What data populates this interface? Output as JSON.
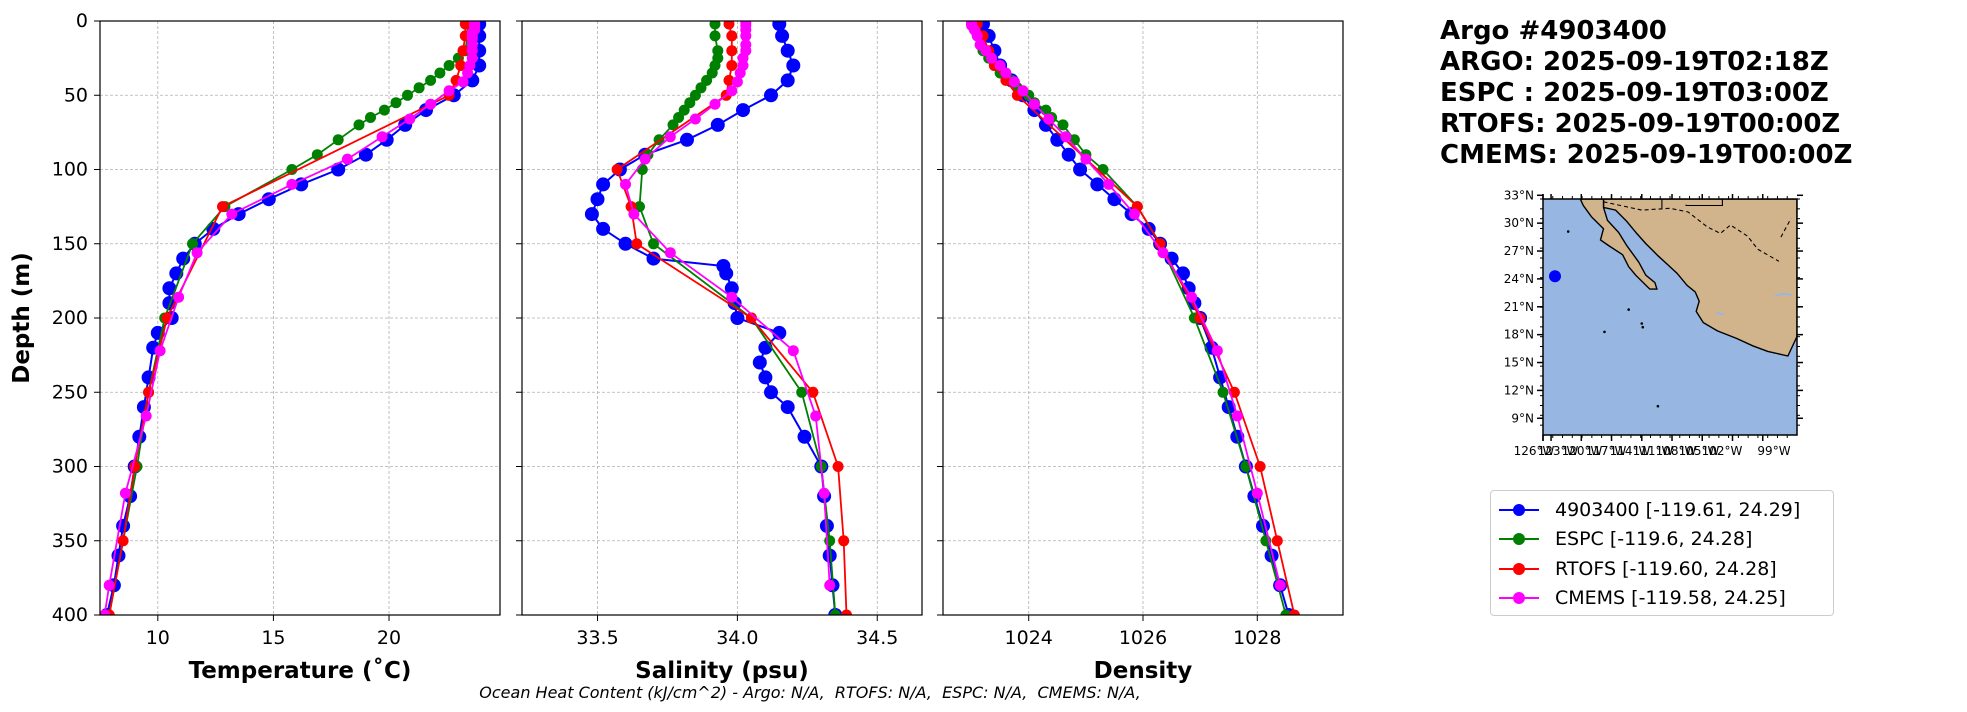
{
  "header": {
    "line1": "Argo #4903400",
    "line2": "ARGO: 2025-09-19T02:18Z",
    "line3": "ESPC : 2025-09-19T03:00Z",
    "line4": "RTOFS: 2025-09-19T00:00Z",
    "line5": "CMEMS: 2025-09-19T00:00Z"
  },
  "footer": "Ocean Heat Content (kJ/cm^2) - Argo: N/A,  RTOFS: N/A,  ESPC: N/A,  CMEMS: N/A,",
  "colors": {
    "argo": "#0000ff",
    "espc": "#008000",
    "rtofs": "#ff0000",
    "cmems": "#ff00ff",
    "ocean": "#97b6e1",
    "land": "#d2b48c",
    "grid": "#b0b0b0"
  },
  "legend": [
    {
      "key": "argo",
      "label": "4903400 [-119.61, 24.29]"
    },
    {
      "key": "espc",
      "label": "ESPC [-119.6, 24.28]"
    },
    {
      "key": "rtofs",
      "label": "RTOFS [-119.60, 24.28]"
    },
    {
      "key": "cmems",
      "label": "CMEMS [-119.58, 24.25]"
    }
  ],
  "chart_data": [
    {
      "type": "line",
      "title": "",
      "xlabel": "Temperature (˚C)",
      "ylabel": "Depth (m)",
      "xlim": [
        7.5,
        24.8
      ],
      "ylim": [
        400,
        0
      ],
      "xticks": [
        10,
        15,
        20
      ],
      "yticks": [
        0,
        50,
        100,
        150,
        200,
        250,
        300,
        350,
        400
      ],
      "grid": true,
      "series": [
        {
          "name": "Argo 4903400",
          "key": "argo",
          "depth": [
            2,
            10,
            20,
            30,
            40,
            50,
            60,
            70,
            80,
            90,
            100,
            110,
            120,
            130,
            140,
            150,
            160,
            170,
            180,
            190,
            200,
            210,
            220,
            240,
            260,
            280,
            300,
            320,
            340,
            360,
            380,
            400
          ],
          "values": [
            23.9,
            23.9,
            23.9,
            23.9,
            23.6,
            22.8,
            21.6,
            20.7,
            19.9,
            19.0,
            17.8,
            16.2,
            14.8,
            13.5,
            12.4,
            11.6,
            11.1,
            10.8,
            10.5,
            10.5,
            10.6,
            10.0,
            9.8,
            9.6,
            9.4,
            9.2,
            9.0,
            8.8,
            8.5,
            8.3,
            8.1,
            7.8
          ]
        },
        {
          "name": "ESPC",
          "key": "espc",
          "depth": [
            2,
            10,
            20,
            25,
            30,
            35,
            40,
            45,
            50,
            55,
            60,
            65,
            70,
            80,
            90,
            100,
            125,
            150,
            200,
            250,
            300,
            400
          ],
          "values": [
            23.4,
            23.4,
            23.3,
            23.0,
            22.6,
            22.2,
            21.8,
            21.3,
            20.8,
            20.3,
            19.8,
            19.2,
            18.7,
            17.8,
            16.9,
            15.8,
            12.9,
            11.5,
            10.3,
            9.6,
            9.1,
            7.9
          ]
        },
        {
          "name": "RTOFS",
          "key": "rtofs",
          "depth": [
            2,
            10,
            20,
            30,
            40,
            50,
            125,
            200,
            250,
            300,
            350,
            400
          ],
          "values": [
            23.3,
            23.3,
            23.2,
            23.1,
            22.9,
            22.6,
            12.8,
            10.4,
            9.6,
            9.0,
            8.5,
            7.9
          ]
        },
        {
          "name": "CMEMS",
          "key": "cmems",
          "depth": [
            1,
            2,
            3,
            5,
            6,
            8,
            10,
            12,
            16,
            20,
            25,
            30,
            35,
            41,
            47,
            56,
            66,
            78,
            93,
            110,
            130,
            156,
            186,
            222,
            266,
            318,
            380,
            400
          ],
          "values": [
            23.7,
            23.7,
            23.7,
            23.7,
            23.7,
            23.6,
            23.6,
            23.6,
            23.6,
            23.6,
            23.6,
            23.5,
            23.4,
            23.2,
            22.6,
            21.8,
            20.9,
            19.7,
            18.2,
            15.8,
            13.2,
            11.7,
            10.9,
            10.1,
            9.5,
            8.6,
            7.9,
            7.7
          ]
        }
      ]
    },
    {
      "type": "line",
      "title": "",
      "xlabel": "Salinity (psu)",
      "ylabel": "",
      "xlim": [
        33.23,
        34.66
      ],
      "ylim": [
        400,
        0
      ],
      "xticks": [
        33.5,
        34.0,
        34.5
      ],
      "yticks": [
        0,
        50,
        100,
        150,
        200,
        250,
        300,
        350,
        400
      ],
      "grid": true,
      "series": [
        {
          "name": "Argo 4903400",
          "key": "argo",
          "depth": [
            2,
            10,
            20,
            30,
            40,
            50,
            60,
            70,
            80,
            90,
            100,
            110,
            120,
            130,
            140,
            150,
            160,
            165,
            170,
            180,
            190,
            200,
            210,
            220,
            230,
            240,
            250,
            260,
            280,
            300,
            320,
            340,
            360,
            380,
            400
          ],
          "values": [
            34.15,
            34.16,
            34.18,
            34.2,
            34.18,
            34.12,
            34.02,
            33.93,
            33.82,
            33.67,
            33.58,
            33.52,
            33.5,
            33.48,
            33.52,
            33.6,
            33.7,
            33.95,
            33.96,
            33.98,
            33.99,
            34.0,
            34.15,
            34.1,
            34.08,
            34.1,
            34.12,
            34.18,
            34.24,
            34.3,
            34.31,
            34.32,
            34.33,
            34.34,
            34.35
          ]
        },
        {
          "name": "ESPC",
          "key": "espc",
          "depth": [
            2,
            10,
            20,
            25,
            30,
            35,
            40,
            45,
            50,
            55,
            60,
            65,
            70,
            80,
            90,
            100,
            125,
            150,
            200,
            250,
            300,
            350,
            400
          ],
          "values": [
            33.92,
            33.92,
            33.93,
            33.93,
            33.92,
            33.91,
            33.89,
            33.87,
            33.85,
            33.83,
            33.81,
            33.79,
            33.77,
            33.72,
            33.68,
            33.66,
            33.65,
            33.7,
            34.05,
            34.23,
            34.3,
            34.33,
            34.35
          ]
        },
        {
          "name": "RTOFS",
          "key": "rtofs",
          "depth": [
            2,
            10,
            20,
            30,
            40,
            50,
            100,
            125,
            150,
            200,
            250,
            300,
            350,
            400
          ],
          "values": [
            33.97,
            33.98,
            33.98,
            33.98,
            33.97,
            33.96,
            33.57,
            33.62,
            33.64,
            34.05,
            34.27,
            34.36,
            34.38,
            34.39
          ]
        },
        {
          "name": "CMEMS",
          "key": "cmems",
          "depth": [
            1,
            3,
            6,
            10,
            16,
            20,
            25,
            30,
            35,
            41,
            47,
            56,
            66,
            78,
            93,
            110,
            130,
            156,
            186,
            222,
            266,
            318,
            380
          ],
          "values": [
            34.03,
            34.03,
            34.03,
            34.03,
            34.03,
            34.03,
            34.02,
            34.02,
            34.01,
            34.0,
            33.98,
            33.92,
            33.85,
            33.76,
            33.67,
            33.6,
            33.63,
            33.76,
            33.98,
            34.2,
            34.28,
            34.31,
            34.33
          ]
        }
      ]
    },
    {
      "type": "line",
      "title": "",
      "xlabel": "Density",
      "ylabel": "",
      "xlim": [
        1022.5,
        1029.5
      ],
      "ylim": [
        400,
        0
      ],
      "xticks": [
        1024,
        1026,
        1028
      ],
      "yticks": [
        0,
        50,
        100,
        150,
        200,
        250,
        300,
        350,
        400
      ],
      "grid": true,
      "series": [
        {
          "name": "Argo 4903400",
          "key": "argo",
          "depth": [
            2,
            10,
            20,
            30,
            40,
            50,
            60,
            70,
            80,
            90,
            100,
            110,
            120,
            130,
            140,
            150,
            160,
            170,
            180,
            190,
            200,
            220,
            240,
            260,
            280,
            300,
            320,
            340,
            360,
            380,
            400
          ],
          "values": [
            1023.2,
            1023.3,
            1023.4,
            1023.5,
            1023.7,
            1023.9,
            1024.1,
            1024.3,
            1024.5,
            1024.7,
            1024.9,
            1025.2,
            1025.5,
            1025.8,
            1026.1,
            1026.3,
            1026.5,
            1026.7,
            1026.8,
            1026.9,
            1027.0,
            1027.2,
            1027.35,
            1027.5,
            1027.65,
            1027.8,
            1027.95,
            1028.1,
            1028.25,
            1028.4,
            1028.55
          ]
        },
        {
          "name": "ESPC",
          "key": "espc",
          "depth": [
            2,
            10,
            20,
            25,
            30,
            35,
            40,
            45,
            50,
            55,
            60,
            65,
            70,
            80,
            90,
            100,
            125,
            150,
            200,
            250,
            300,
            350,
            400
          ],
          "values": [
            1023.0,
            1023.1,
            1023.2,
            1023.3,
            1023.4,
            1023.5,
            1023.7,
            1023.8,
            1024.0,
            1024.1,
            1024.3,
            1024.4,
            1024.6,
            1024.8,
            1025.0,
            1025.3,
            1025.9,
            1026.3,
            1026.9,
            1027.4,
            1027.8,
            1028.15,
            1028.5
          ]
        },
        {
          "name": "RTOFS",
          "key": "rtofs",
          "depth": [
            2,
            10,
            20,
            30,
            40,
            50,
            125,
            150,
            200,
            250,
            300,
            350,
            400
          ],
          "values": [
            1023.1,
            1023.2,
            1023.3,
            1023.4,
            1023.6,
            1023.8,
            1025.9,
            1026.3,
            1027.0,
            1027.6,
            1028.05,
            1028.35,
            1028.65
          ]
        },
        {
          "name": "CMEMS",
          "key": "cmems",
          "depth": [
            1,
            3,
            6,
            10,
            16,
            20,
            25,
            30,
            35,
            41,
            47,
            56,
            66,
            78,
            93,
            110,
            130,
            156,
            186,
            222,
            266,
            318,
            380
          ],
          "values": [
            1023.0,
            1023.0,
            1023.05,
            1023.1,
            1023.15,
            1023.25,
            1023.35,
            1023.5,
            1023.6,
            1023.75,
            1023.9,
            1024.1,
            1024.35,
            1024.65,
            1025.0,
            1025.4,
            1025.85,
            1026.35,
            1026.85,
            1027.3,
            1027.65,
            1028.0,
            1028.4
          ]
        }
      ]
    }
  ],
  "inset_map": {
    "lat_labels": [
      "33°N",
      "30°N",
      "27°N",
      "24°N",
      "21°N",
      "18°N",
      "15°N",
      "12°N",
      "9°N"
    ],
    "lat_values": [
      33,
      30,
      27,
      24,
      21,
      18,
      15,
      12,
      9
    ],
    "lon_labels": [
      "126°W",
      "123°W",
      "120°W",
      "117°W",
      "114°W",
      "111°W",
      "108°W",
      "105°W",
      "102°W",
      "99°W"
    ],
    "lon_values": [
      -126,
      -123,
      -120,
      -117,
      -114,
      -111,
      -108,
      -105,
      -102,
      -99
    ],
    "lon_range": [
      -120.8,
      -95.6
    ],
    "lat_range": [
      7.2,
      32.6
    ],
    "float_position": {
      "lon": -119.61,
      "lat": 24.29
    }
  }
}
